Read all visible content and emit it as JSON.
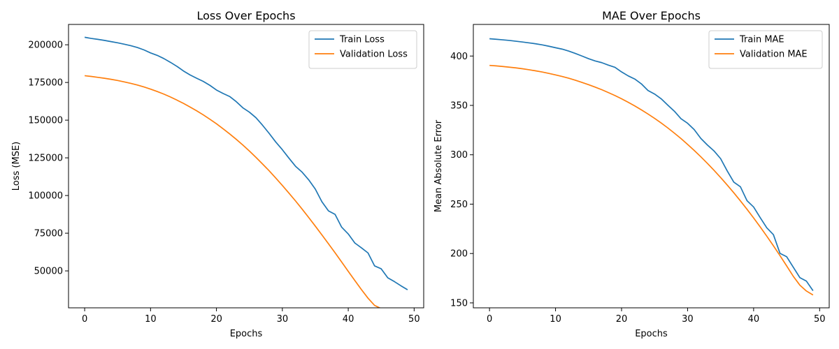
{
  "chart_data": [
    {
      "type": "line",
      "title": "Loss Over Epochs",
      "xlabel": "Epochs",
      "ylabel": "Loss (MSE)",
      "xlim": [
        -2.45,
        51.45
      ],
      "ylim": [
        25500,
        213500
      ],
      "xticks": [
        0,
        10,
        20,
        30,
        40,
        50
      ],
      "yticks": [
        50000,
        75000,
        100000,
        125000,
        150000,
        175000,
        200000
      ],
      "legend": "top-right",
      "x": [
        0,
        1,
        2,
        3,
        4,
        5,
        6,
        7,
        8,
        9,
        10,
        11,
        12,
        13,
        14,
        15,
        16,
        17,
        18,
        19,
        20,
        21,
        22,
        23,
        24,
        25,
        26,
        27,
        28,
        29,
        30,
        31,
        32,
        33,
        34,
        35,
        36,
        37,
        38,
        39,
        40,
        41,
        42,
        43,
        44,
        45,
        46,
        47,
        48,
        49
      ],
      "series": [
        {
          "name": "Train Loss",
          "color": "#1f77b4",
          "values": [
            205000,
            204200,
            203600,
            202900,
            202100,
            201300,
            200400,
            199400,
            198200,
            196600,
            194600,
            193000,
            190900,
            188400,
            185700,
            182600,
            180000,
            177800,
            175700,
            173100,
            170000,
            167700,
            165700,
            162300,
            158200,
            155300,
            151600,
            146600,
            141200,
            135500,
            130400,
            124800,
            119400,
            115500,
            110400,
            104300,
            95900,
            89800,
            87500,
            79000,
            74500,
            68500,
            65300,
            61900,
            53300,
            51400,
            45400,
            42900,
            40100,
            37500
          ]
        },
        {
          "name": "Validation Loss",
          "color": "#ff7f0e",
          "values": [
            179500,
            179000,
            178400,
            177800,
            177100,
            176300,
            175400,
            174400,
            173300,
            172000,
            170600,
            169000,
            167300,
            165400,
            163300,
            161100,
            158700,
            156200,
            153500,
            150600,
            147600,
            144300,
            140900,
            137300,
            133500,
            129500,
            125300,
            120900,
            116400,
            111600,
            106700,
            101600,
            96400,
            91000,
            85400,
            79700,
            73900,
            68000,
            62000,
            55900,
            49700,
            43600,
            37600,
            31900,
            27100,
            25000,
            25000,
            25000,
            25000,
            25000
          ]
        }
      ]
    },
    {
      "type": "line",
      "title": "MAE Over Epochs",
      "xlabel": "Epochs",
      "ylabel": "Mean Absolute Error",
      "xlim": [
        -2.45,
        51.45
      ],
      "ylim": [
        145,
        432
      ],
      "xticks": [
        0,
        10,
        20,
        30,
        40,
        50
      ],
      "yticks": [
        150,
        200,
        250,
        300,
        350,
        400
      ],
      "legend": "top-right",
      "x": [
        0,
        1,
        2,
        3,
        4,
        5,
        6,
        7,
        8,
        9,
        10,
        11,
        12,
        13,
        14,
        15,
        16,
        17,
        18,
        19,
        20,
        21,
        22,
        23,
        24,
        25,
        26,
        27,
        28,
        29,
        30,
        31,
        32,
        33,
        34,
        35,
        36,
        37,
        38,
        39,
        40,
        41,
        42,
        43,
        44,
        45,
        46,
        47,
        48,
        49
      ],
      "series": [
        {
          "name": "Train MAE",
          "color": "#1f77b4",
          "values": [
            417.5,
            417.0,
            416.4,
            415.8,
            415.0,
            414.2,
            413.3,
            412.4,
            411.3,
            409.9,
            408.4,
            407.0,
            405.0,
            402.6,
            400.0,
            397.3,
            395.0,
            393.3,
            390.8,
            388.6,
            383.9,
            379.9,
            376.7,
            371.8,
            365.1,
            361.5,
            356.7,
            350.3,
            344.1,
            336.5,
            331.9,
            325.5,
            316.6,
            309.9,
            303.9,
            296.1,
            283.7,
            272.3,
            267.6,
            253.5,
            247.1,
            236.3,
            226.0,
            219.1,
            200.1,
            196.8,
            186.2,
            175.6,
            172.0,
            162.3
          ]
        },
        {
          "name": "Validation MAE",
          "color": "#ff7f0e",
          "values": [
            390.5,
            390.0,
            389.4,
            388.7,
            388.0,
            387.1,
            386.1,
            385.0,
            383.8,
            382.4,
            380.9,
            379.3,
            377.5,
            375.5,
            373.3,
            371.0,
            368.5,
            365.9,
            363.0,
            360.0,
            356.7,
            353.2,
            349.5,
            345.5,
            341.3,
            336.9,
            332.2,
            327.2,
            321.9,
            316.4,
            310.5,
            304.4,
            298.0,
            291.3,
            284.3,
            277.0,
            269.4,
            261.5,
            253.3,
            244.8,
            236.0,
            226.9,
            217.5,
            207.8,
            197.8,
            187.5,
            177.0,
            168.0,
            162.0,
            158.0
          ]
        }
      ]
    }
  ]
}
